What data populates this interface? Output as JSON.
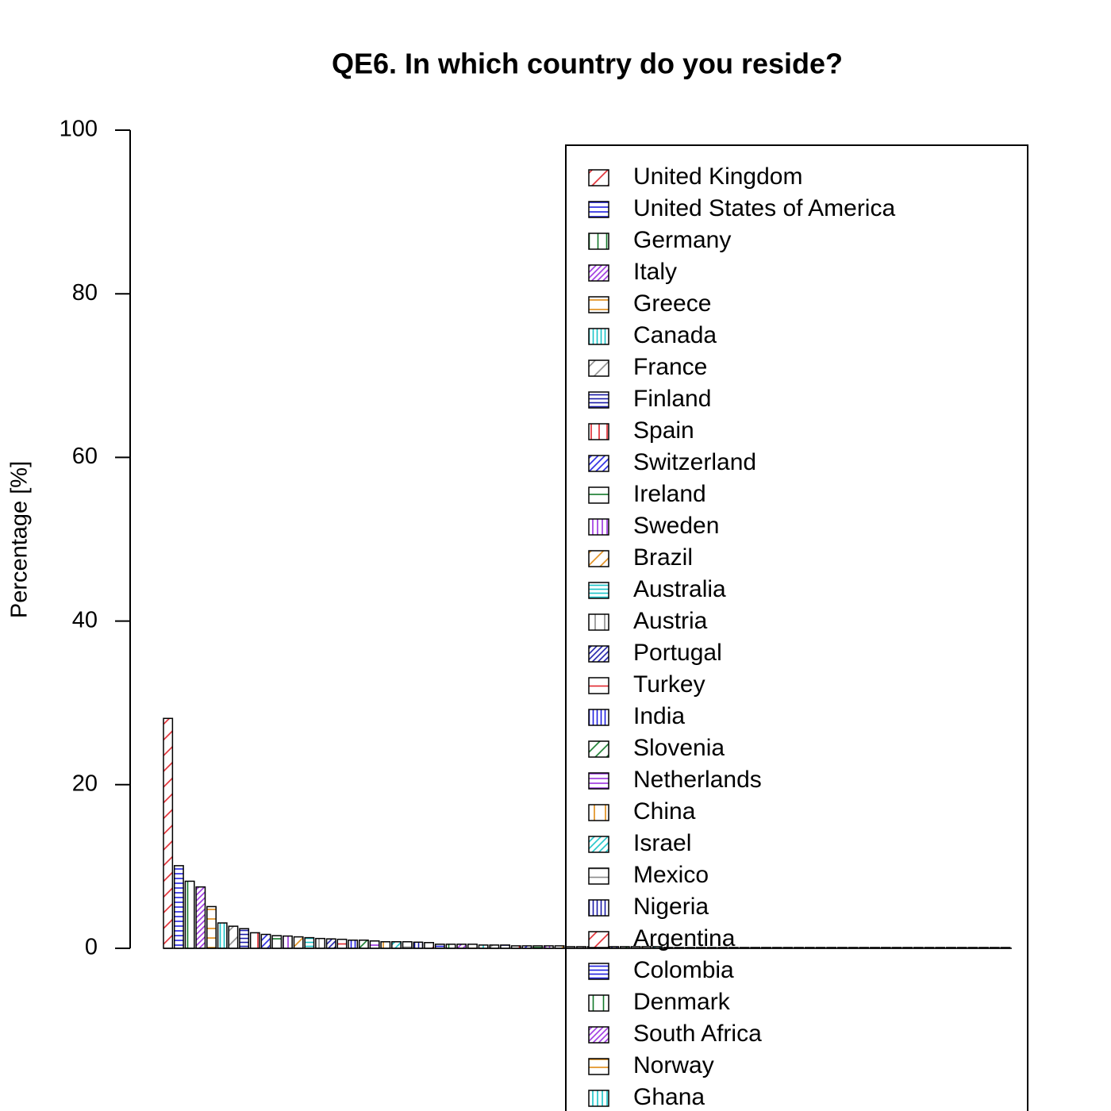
{
  "chart_data": {
    "type": "bar",
    "title": "QE6. In which country do you reside?",
    "y_label": "Percentage [%]",
    "ylim": [
      0,
      100
    ],
    "yticks": [
      0,
      20,
      40,
      60,
      80,
      100
    ],
    "categories": [
      "United Kingdom",
      "United States of America",
      "Germany",
      "Italy",
      "Greece",
      "Canada",
      "France",
      "Finland",
      "Spain",
      "Switzerland",
      "Ireland",
      "Sweden",
      "Brazil",
      "Australia",
      "Austria",
      "Portugal",
      "Turkey",
      "India",
      "Slovenia",
      "Netherlands",
      "China",
      "Israel",
      "Mexico",
      "Nigeria",
      "Argentina",
      "Colombia",
      "Denmark",
      "South Africa",
      "Norway",
      "Ghana",
      null,
      null,
      null,
      null,
      null,
      null,
      null,
      null,
      null,
      null,
      null,
      null,
      null,
      null,
      null,
      null,
      null,
      null,
      null,
      null,
      null,
      null,
      null,
      null,
      null,
      null,
      null,
      null,
      null,
      null,
      null,
      null,
      null,
      null,
      null,
      null,
      null,
      null,
      null,
      null,
      null,
      null,
      null,
      null,
      null,
      null,
      null,
      null
    ],
    "values": [
      28.1,
      10.1,
      8.2,
      7.5,
      5.1,
      3.1,
      2.7,
      2.4,
      1.9,
      1.7,
      1.55,
      1.5,
      1.4,
      1.3,
      1.2,
      1.15,
      1.1,
      1.0,
      1.0,
      0.9,
      0.8,
      0.8,
      0.8,
      0.75,
      0.7,
      0.5,
      0.5,
      0.5,
      0.5,
      0.4,
      0.4,
      0.4,
      0.3,
      0.3,
      0.3,
      0.3,
      0.3,
      0.2,
      0.2,
      0.2,
      0.2,
      0.2,
      0.2,
      0.2,
      0.2,
      0.2,
      0.1,
      0.1,
      0.1,
      0.1,
      0.1,
      0.1,
      0.1,
      0.1,
      0.1,
      0.1,
      0.1,
      0.1,
      0.1,
      0.1,
      0.1,
      0.1,
      0.1,
      0.1,
      0.1,
      0.1,
      0.1,
      0.1,
      0.1,
      0.1,
      0.1,
      0.1,
      0.1,
      0.1,
      0.1,
      0.1,
      0.1,
      0.1
    ],
    "palette": [
      "#e0242b",
      "#1f1fe0",
      "#137a2a",
      "#9b30e0",
      "#e08a14",
      "#18c4c8",
      "#8a8a8a",
      "#1a1aa8"
    ],
    "hatch_angles": [
      45,
      0,
      90
    ]
  }
}
